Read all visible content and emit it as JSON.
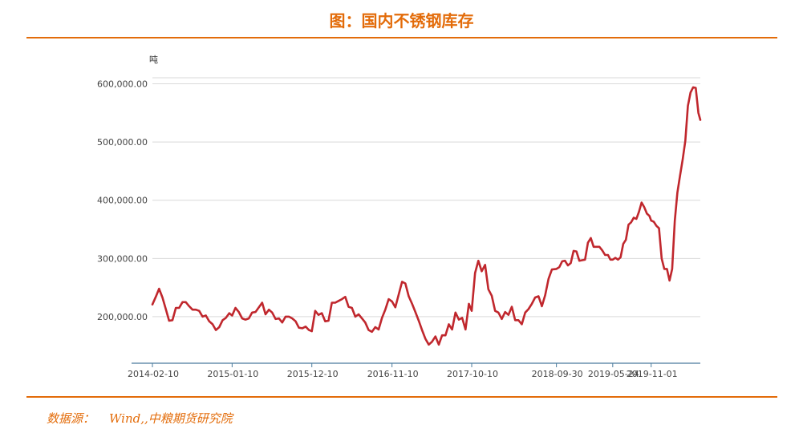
{
  "header": {
    "title": "图：国内不锈钢库存"
  },
  "footer": {
    "source_label": "数据源：",
    "source_value": "Wind,,中粮期货研究院"
  },
  "colors": {
    "accent": "#E36C0A",
    "line": "#C0272D",
    "grid": "#D9D9D9",
    "axis": "#4A7B9D"
  },
  "chart_data": {
    "type": "line",
    "title": "图：国内不锈钢库存",
    "ylabel": "吨",
    "xlabel": "",
    "ylim": [
      120000,
      620000
    ],
    "yticks": [
      200000,
      300000,
      400000,
      500000,
      600000
    ],
    "ytick_labels": [
      "200,000.00",
      "300,000.00",
      "400,000.00",
      "500,000.00",
      "600,000.00"
    ],
    "xlim": [
      "2014-02-10",
      "2020-05-25"
    ],
    "xtick_labels": [
      "2014-02-10",
      "2015-01-10",
      "2015-12-10",
      "2016-11-10",
      "2017-10-10",
      "2018-09-30",
      "2019-05-24",
      "2019-11-01"
    ],
    "grid": true,
    "legend": "none",
    "series": [
      {
        "x": [
          "2014-02-10",
          "2014-02-24",
          "2014-03-10",
          "2014-03-24",
          "2014-04-07",
          "2014-04-21",
          "2014-05-05",
          "2014-05-19",
          "2014-06-02",
          "2014-06-16",
          "2014-06-30",
          "2014-07-14",
          "2014-07-28",
          "2014-08-11",
          "2014-08-25",
          "2014-09-08",
          "2014-09-22",
          "2014-10-06",
          "2014-10-20",
          "2014-11-03",
          "2014-11-17",
          "2014-12-01",
          "2014-12-15",
          "2014-12-29",
          "2015-01-10",
          "2015-01-24",
          "2015-02-07",
          "2015-02-21",
          "2015-03-07",
          "2015-03-21",
          "2015-04-04",
          "2015-04-18",
          "2015-05-02",
          "2015-05-16",
          "2015-05-30",
          "2015-06-13",
          "2015-06-27",
          "2015-07-11",
          "2015-07-25",
          "2015-08-08",
          "2015-08-22",
          "2015-09-05",
          "2015-09-19",
          "2015-10-03",
          "2015-10-17",
          "2015-10-31",
          "2015-11-14",
          "2015-11-28",
          "2015-12-10",
          "2015-12-24",
          "2016-01-07",
          "2016-01-21",
          "2016-02-04",
          "2016-02-18",
          "2016-03-03",
          "2016-03-17",
          "2016-03-31",
          "2016-04-14",
          "2016-04-28",
          "2016-05-12",
          "2016-05-26",
          "2016-06-09",
          "2016-06-23",
          "2016-07-07",
          "2016-07-21",
          "2016-08-04",
          "2016-08-18",
          "2016-09-01",
          "2016-09-15",
          "2016-09-29",
          "2016-10-13",
          "2016-10-27",
          "2016-11-10",
          "2016-11-24",
          "2016-12-08",
          "2016-12-22",
          "2017-01-05",
          "2017-01-19",
          "2017-02-02",
          "2017-02-16",
          "2017-03-02",
          "2017-03-16",
          "2017-03-30",
          "2017-04-13",
          "2017-04-27",
          "2017-05-11",
          "2017-05-25",
          "2017-06-08",
          "2017-06-22",
          "2017-07-06",
          "2017-07-20",
          "2017-08-03",
          "2017-08-17",
          "2017-08-31",
          "2017-09-14",
          "2017-09-28",
          "2017-10-10",
          "2017-10-24",
          "2017-11-07",
          "2017-11-21",
          "2017-12-05",
          "2017-12-19",
          "2018-01-02",
          "2018-01-16",
          "2018-01-30",
          "2018-02-13",
          "2018-02-27",
          "2018-03-13",
          "2018-03-27",
          "2018-04-10",
          "2018-04-24",
          "2018-05-08",
          "2018-05-22",
          "2018-06-05",
          "2018-06-19",
          "2018-07-03",
          "2018-07-17",
          "2018-07-31",
          "2018-08-14",
          "2018-08-28",
          "2018-09-11",
          "2018-09-30",
          "2018-10-12",
          "2018-10-24",
          "2018-11-05",
          "2018-11-17",
          "2018-11-29",
          "2018-12-11",
          "2018-12-23",
          "2019-01-04",
          "2019-01-16",
          "2019-01-28",
          "2019-02-09",
          "2019-02-21",
          "2019-03-05",
          "2019-03-17",
          "2019-03-29",
          "2019-04-10",
          "2019-04-22",
          "2019-05-04",
          "2019-05-14",
          "2019-05-24",
          "2019-06-04",
          "2019-06-15",
          "2019-06-26",
          "2019-07-07",
          "2019-07-18",
          "2019-07-29",
          "2019-08-09",
          "2019-08-20",
          "2019-08-31",
          "2019-09-11",
          "2019-09-22",
          "2019-10-03",
          "2019-10-14",
          "2019-10-25",
          "2019-11-01",
          "2019-11-12",
          "2019-11-23",
          "2019-12-04",
          "2019-12-15",
          "2019-12-26",
          "2020-01-06",
          "2020-01-17",
          "2020-01-28",
          "2020-02-08",
          "2020-02-19",
          "2020-03-01",
          "2020-03-12",
          "2020-03-23",
          "2020-04-03",
          "2020-04-14",
          "2020-04-25",
          "2020-05-06",
          "2020-05-17",
          "2020-05-25"
        ],
        "values": [
          221000,
          234000,
          248000,
          233000,
          213000,
          193000,
          194000,
          215000,
          215000,
          225000,
          225000,
          218000,
          212000,
          212000,
          210000,
          200000,
          202000,
          192000,
          187000,
          177000,
          182000,
          194000,
          198000,
          206000,
          202000,
          215000,
          208000,
          197000,
          195000,
          197000,
          207000,
          208000,
          216000,
          224000,
          204000,
          212000,
          207000,
          196000,
          197000,
          190000,
          200000,
          200000,
          197000,
          192000,
          181000,
          180000,
          183000,
          177000,
          175000,
          210000,
          203000,
          206000,
          192000,
          193000,
          224000,
          224000,
          227000,
          230000,
          234000,
          217000,
          215000,
          200000,
          204000,
          197000,
          190000,
          177000,
          174000,
          182000,
          178000,
          198000,
          212000,
          230000,
          226000,
          216000,
          238000,
          260000,
          257000,
          235000,
          222000,
          208000,
          193000,
          177000,
          162000,
          152000,
          157000,
          166000,
          152000,
          168000,
          168000,
          187000,
          178000,
          207000,
          195000,
          198000,
          178000,
          222000,
          210000,
          275000,
          296000,
          278000,
          289000,
          247000,
          236000,
          210000,
          207000,
          196000,
          208000,
          203000,
          217000,
          194000,
          194000,
          187000,
          207000,
          213000,
          222000,
          233000,
          235000,
          218000,
          237000,
          265000,
          281000,
          282000,
          285000,
          295000,
          296000,
          288000,
          292000,
          313000,
          312000,
          296000,
          297000,
          298000,
          327000,
          335000,
          320000,
          320000,
          320000,
          314000,
          306000,
          306000,
          298000,
          298000,
          301000,
          298000,
          302000,
          325000,
          332000,
          358000,
          362000,
          370000,
          368000,
          380000,
          396000,
          388000,
          377000,
          373000,
          365000,
          363000,
          356000,
          352000,
          300000,
          282000,
          282000,
          262000,
          282000,
          365000,
          413000,
          442000,
          470000,
          502000,
          562000,
          585000,
          594000,
          593000,
          550000,
          538000
        ]
      }
    ]
  }
}
